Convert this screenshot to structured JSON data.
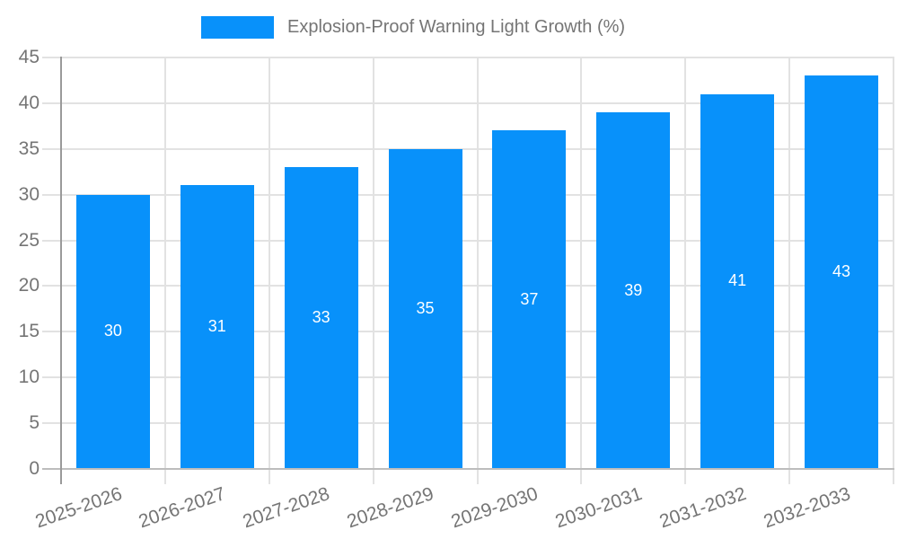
{
  "legend": {
    "label": "Explosion-Proof Warning Light Growth (%)"
  },
  "chart_data": {
    "type": "bar",
    "title": "Explosion-Proof Warning Light Growth (%)",
    "categories": [
      "2025-2026",
      "2026-2027",
      "2027-2028",
      "2028-2029",
      "2029-2030",
      "2030-2031",
      "2031-2032",
      "2032-2033"
    ],
    "values": [
      30,
      31,
      33,
      35,
      37,
      39,
      41,
      43
    ],
    "xlabel": "",
    "ylabel": "",
    "ylim": [
      0,
      45
    ],
    "yticks": [
      0,
      5,
      10,
      15,
      20,
      25,
      30,
      35,
      40,
      45
    ],
    "grid": true,
    "legend_position": "top-center",
    "x_label_rotation_deg": -19,
    "value_label_position": "inside-center",
    "colors": {
      "bar": "#0891fa",
      "axis_text": "#757575",
      "legend_text": "#757575",
      "gridline": "#e2e2e2",
      "y_axis_line": "#9a9a9a",
      "x_axis_line": "#bdbdbd",
      "value_label": "#ffffff",
      "background": "#ffffff"
    }
  }
}
